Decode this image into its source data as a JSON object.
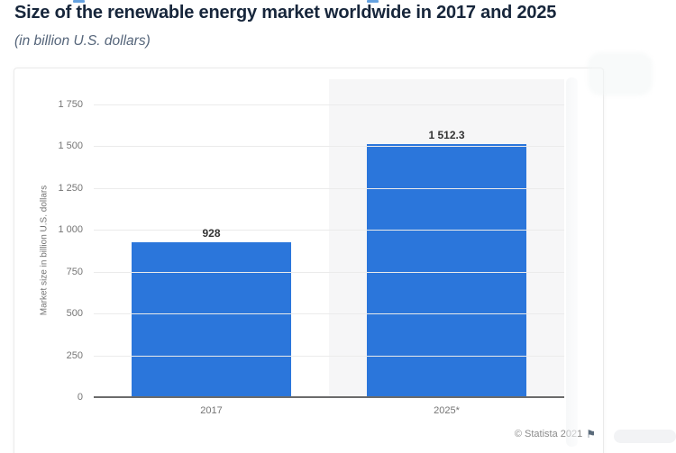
{
  "header": {
    "title": "Size of the renewable energy market worldwide in 2017 and 2025",
    "subtitle": "(in billion U.S. dollars)"
  },
  "footer": {
    "copyright": "© Statista 2021",
    "flag_icon": "⚑"
  },
  "chart_data": {
    "type": "bar",
    "title": "Size of the renewable energy market worldwide in 2017 and 2025",
    "subtitle": "(in billion U.S. dollars)",
    "categories": [
      "2017",
      "2025*"
    ],
    "values": [
      928,
      1512.3
    ],
    "value_labels": [
      "928",
      "1 512.3"
    ],
    "xlabel": "",
    "ylabel": "Market size in billion U.S. dollars",
    "ylim": [
      0,
      1750
    ],
    "yticks": [
      0,
      250,
      500,
      750,
      1000,
      1250,
      1500,
      1750
    ],
    "ytick_labels": [
      "0",
      "250",
      "500",
      "750",
      "1 000",
      "1 250",
      "1 500",
      "1 750"
    ],
    "grid": true,
    "legend": false,
    "bar_color": "#2b76db",
    "highlighted_category_index": 1,
    "highlight_band_color": "#f6f6f7"
  },
  "colors": {
    "title_text": "#17263b",
    "subtitle_text": "#55657a",
    "axis_text": "#757575",
    "value_label_text": "#333333",
    "baseline": "#6b6b6b",
    "gridline": "#ebebeb",
    "bar": "#2b76db",
    "highlight_band": "#f6f6f7",
    "card_border": "#eaeaea",
    "footer_text": "#8b8b8b"
  }
}
